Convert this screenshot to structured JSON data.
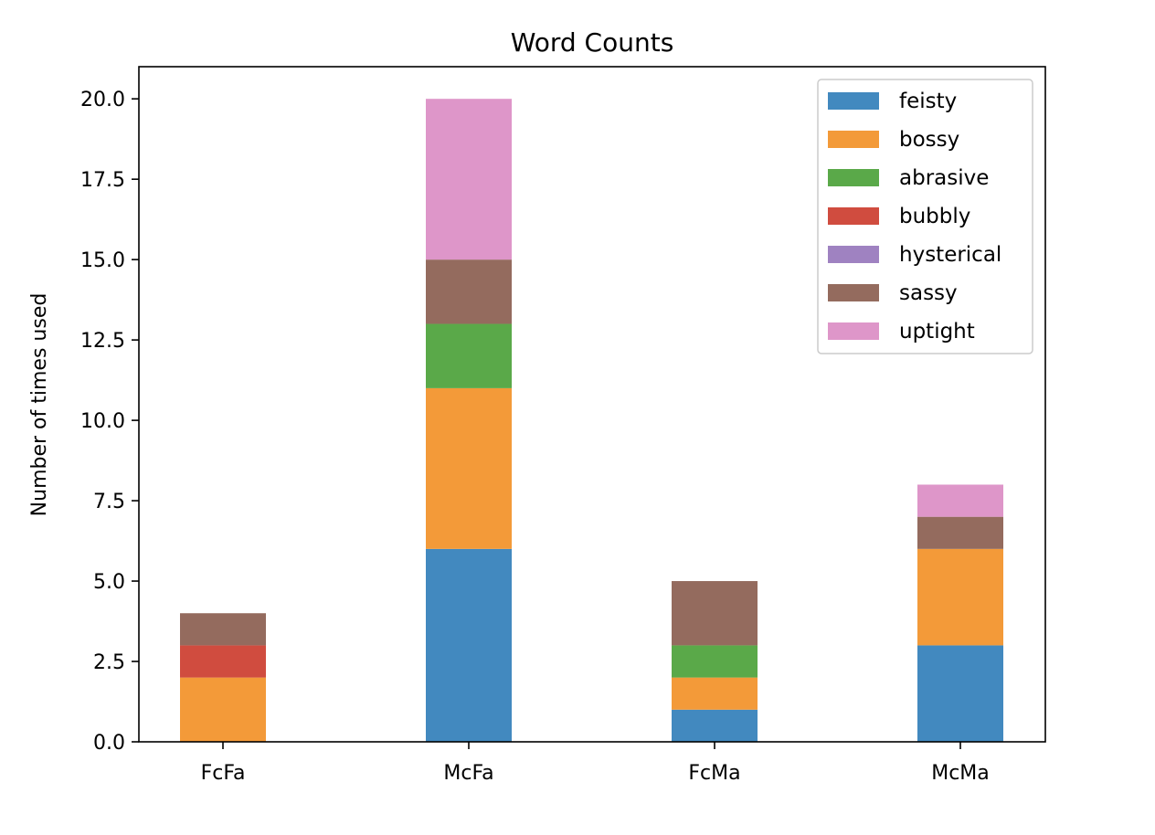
{
  "chart_data": {
    "type": "bar",
    "stacked": true,
    "title": "Word Counts",
    "xlabel": "",
    "ylabel": "Number of times used",
    "categories": [
      "FcFa",
      "McFa",
      "FcMa",
      "McMa"
    ],
    "series": [
      {
        "name": "feisty",
        "color": "#4289bf",
        "values": [
          0,
          6,
          1,
          3
        ]
      },
      {
        "name": "bossy",
        "color": "#f39a39",
        "values": [
          2,
          5,
          1,
          3
        ]
      },
      {
        "name": "abrasive",
        "color": "#5aa949",
        "values": [
          0,
          2,
          1,
          0
        ]
      },
      {
        "name": "bubbly",
        "color": "#d04c3f",
        "values": [
          1,
          0,
          0,
          0
        ]
      },
      {
        "name": "hysterical",
        "color": "#9f82c1",
        "values": [
          0,
          0,
          0,
          0
        ]
      },
      {
        "name": "sassy",
        "color": "#946b5e",
        "values": [
          1,
          2,
          2,
          1
        ]
      },
      {
        "name": "uptight",
        "color": "#de96c9",
        "values": [
          0,
          5,
          0,
          1
        ]
      }
    ],
    "ylim": [
      0,
      21
    ],
    "yticks": [
      "0.0",
      "2.5",
      "5.0",
      "7.5",
      "10.0",
      "12.5",
      "15.0",
      "17.5",
      "20.0"
    ],
    "ytick_values": [
      0,
      2.5,
      5,
      7.5,
      10,
      12.5,
      15,
      17.5,
      20
    ],
    "grid": false,
    "legend_position": "top-right"
  }
}
